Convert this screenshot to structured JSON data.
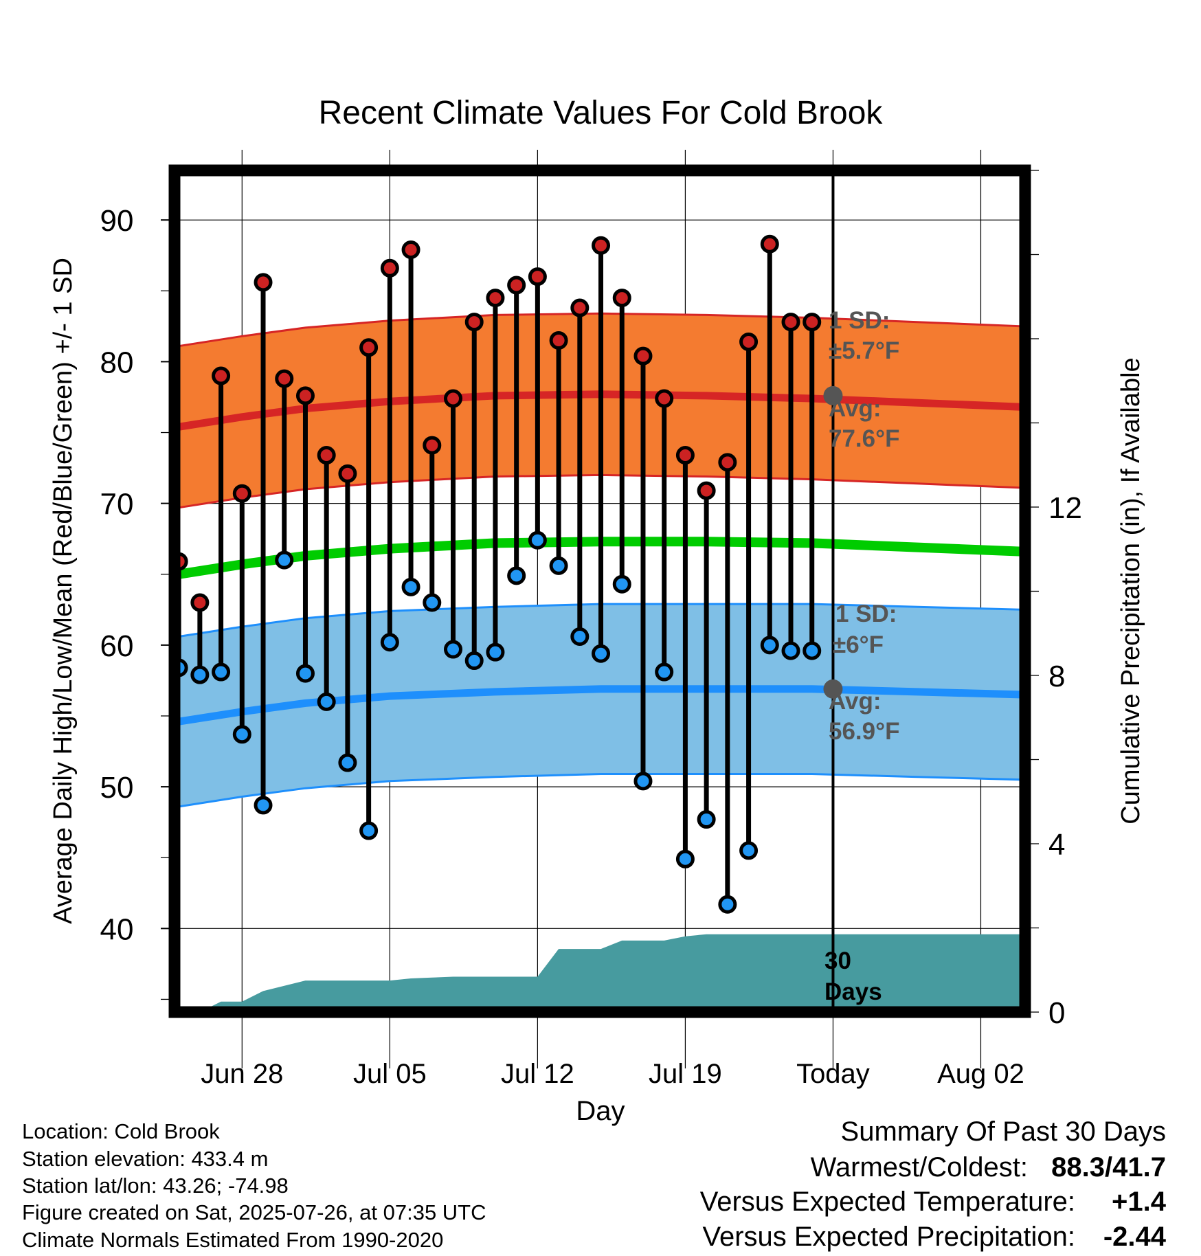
{
  "chart_data": {
    "type": "line",
    "title": "Recent Climate Values For Cold Brook",
    "xlabel": "Day",
    "ylabel_left": "Average Daily High/Low/Mean (Red/Blue/Green) +/- 1 SD",
    "ylabel_right": "Cumulative Precipitation (in), If Available",
    "x_ticks": [
      "Jun 28",
      "Jul 05",
      "Jul 12",
      "Jul 19",
      "Today",
      "Aug 02"
    ],
    "x_tick_days": [
      28,
      35,
      42,
      49,
      56,
      63
    ],
    "y_left_ticks": [
      40,
      50,
      60,
      70,
      80,
      90
    ],
    "y_left_range": [
      34.1,
      93.5
    ],
    "y_right_ticks": [
      0,
      4,
      8,
      12
    ],
    "y_right_range": [
      0,
      20
    ],
    "x_range": [
      24.8,
      65.1
    ],
    "today_day": 56,
    "days": [
      25,
      26,
      27,
      28,
      29,
      30,
      31,
      32,
      33,
      34,
      35,
      36,
      37,
      38,
      39,
      40,
      41,
      42,
      43,
      44,
      45,
      46,
      47,
      48,
      49,
      50,
      51,
      52,
      53,
      54,
      55
    ],
    "highs": [
      65.9,
      63.0,
      79.0,
      70.7,
      85.6,
      78.8,
      77.6,
      73.4,
      72.1,
      81.0,
      86.6,
      87.9,
      74.1,
      77.4,
      82.8,
      84.5,
      85.4,
      86.0,
      81.5,
      83.8,
      88.2,
      84.5,
      80.4,
      77.4,
      73.4,
      70.9,
      72.9,
      81.4,
      88.3,
      82.8,
      82.8
    ],
    "lows": [
      58.4,
      57.9,
      58.1,
      53.7,
      48.7,
      66.0,
      58.0,
      56.0,
      51.7,
      46.9,
      60.2,
      64.1,
      63.0,
      59.7,
      58.9,
      59.5,
      64.9,
      67.4,
      65.6,
      60.6,
      59.4,
      64.3,
      50.4,
      58.1,
      44.9,
      47.7,
      41.7,
      45.5,
      60.0,
      59.6,
      59.6
    ],
    "normal_x": [
      25,
      28,
      31,
      35,
      40,
      45,
      50,
      55,
      60,
      65
    ],
    "normal_high": [
      75.4,
      76.1,
      76.7,
      77.2,
      77.6,
      77.7,
      77.6,
      77.4,
      77.1,
      76.8
    ],
    "normal_low": [
      54.6,
      55.3,
      55.9,
      56.4,
      56.7,
      56.9,
      56.9,
      56.9,
      56.7,
      56.5
    ],
    "normal_mean": [
      65.0,
      65.7,
      66.3,
      66.8,
      67.2,
      67.3,
      67.3,
      67.2,
      66.9,
      66.6
    ],
    "high_sd": 5.7,
    "low_sd": 6.0,
    "precip_days": [
      24.8,
      26,
      27,
      28,
      29,
      31,
      32,
      33,
      35,
      36,
      37,
      38,
      42,
      43,
      45,
      46,
      47,
      48,
      49,
      50,
      51,
      52,
      55,
      56,
      65.1
    ],
    "precip_cumulative": [
      0,
      0,
      0.25,
      0.25,
      0.5,
      0.75,
      0.75,
      0.75,
      0.75,
      0.8,
      0.82,
      0.84,
      0.84,
      1.5,
      1.5,
      1.7,
      1.7,
      1.7,
      1.8,
      1.85,
      1.85,
      1.85,
      1.85,
      1.85,
      1.85
    ],
    "annotations": {
      "high_sd_label": "1 SD:",
      "high_sd_value": "±5.7°F",
      "high_avg_label": "Avg:",
      "high_avg_value": "77.6°F",
      "low_sd_label": "1 SD:",
      "low_sd_value": "±6°F",
      "low_avg_label": "Avg:",
      "low_avg_value": "56.9°F",
      "days_number": "30",
      "days_word": "Days"
    },
    "colors": {
      "high_band": "#f47b30",
      "high_line": "#d62525",
      "low_band": "#7fbfe6",
      "low_line": "#1e8ffc",
      "mean_line": "#00cc00",
      "precip": "#479b9f",
      "high_dot": "#cc2222",
      "low_dot": "#2196f3",
      "annotation": "#555555"
    }
  },
  "footer": {
    "location": "Location: Cold Brook",
    "elevation": "Station elevation: 433.4 m",
    "latlon": "Station lat/lon: 43.26; -74.98",
    "created": "Figure created on Sat, 2025-07-26, at 07:35 UTC",
    "normals": "Climate Normals Estimated From 1990-2020"
  },
  "summary": {
    "title": "Summary Of Past 30 Days",
    "warmest_label": "Warmest/Coldest:",
    "warmest_value": "88.3/41.7",
    "temp_label": "Versus Expected Temperature:",
    "temp_value": "+1.4",
    "temp_color": "#d62525",
    "precip_label": "Versus Expected Precipitation:",
    "precip_value": "-2.44",
    "precip_color": "#a0522d"
  }
}
